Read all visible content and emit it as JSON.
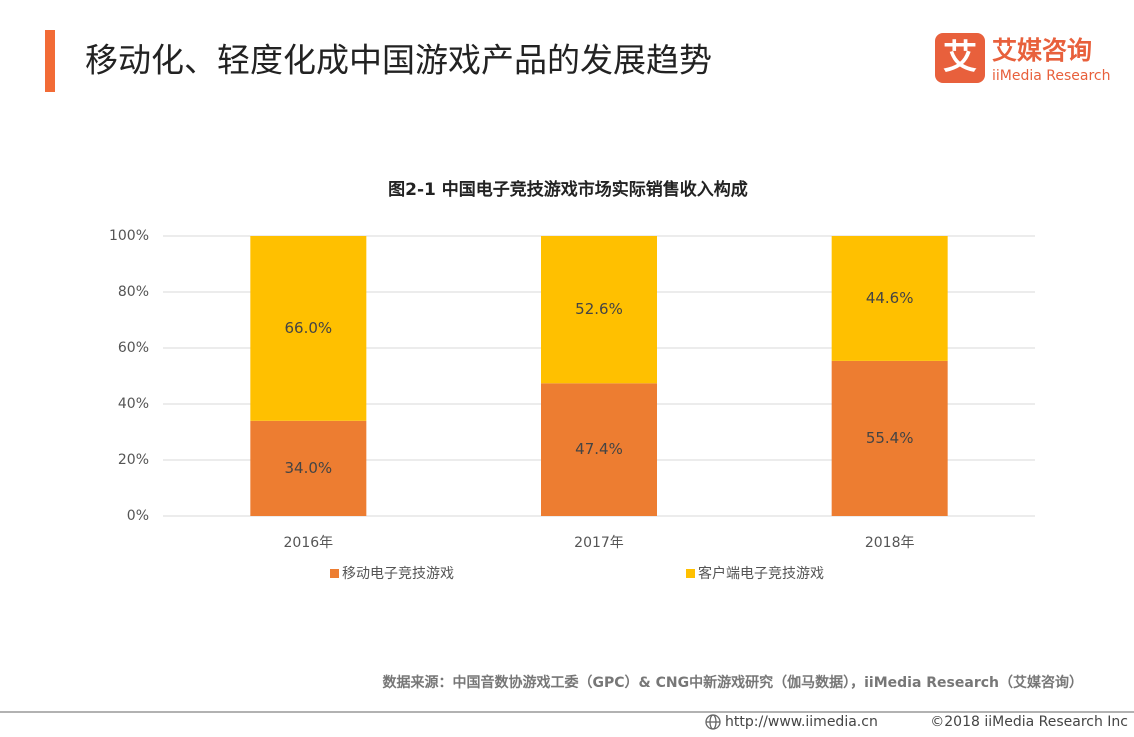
{
  "header": {
    "title": "移动化、轻度化成中国游戏产品的发展趋势"
  },
  "logo": {
    "icon": "艾",
    "name": "艾媒咨询",
    "subtitle": "iiMedia Research"
  },
  "chart_data": {
    "type": "bar",
    "stacked": true,
    "title": "图2-1 中国电子竞技游戏市场实际销售收入构成",
    "categories": [
      "2016年",
      "2017年",
      "2018年"
    ],
    "series": [
      {
        "name": "移动电子竞技游戏",
        "color": "#ed7d31",
        "values": [
          34.0,
          47.4,
          55.4
        ],
        "value_labels": [
          "34.0%",
          "47.4%",
          "55.4%"
        ]
      },
      {
        "name": "客户端电子竞技游戏",
        "color": "#ffc000",
        "values": [
          66.0,
          52.6,
          44.6
        ],
        "value_labels": [
          "66.0%",
          "52.6%",
          "44.6%"
        ]
      }
    ],
    "ylim": [
      0,
      100
    ],
    "yticks": [
      {
        "value": 0,
        "label": "0%"
      },
      {
        "value": 20,
        "label": "20%"
      },
      {
        "value": 40,
        "label": "40%"
      },
      {
        "value": 60,
        "label": "60%"
      },
      {
        "value": 80,
        "label": "80%"
      },
      {
        "value": 100,
        "label": "100%"
      }
    ],
    "grid": true,
    "legend": "bottom"
  },
  "source": "数据来源：中国音数协游戏工委（GPC）& CNG中新游戏研究（伽马数据），iiMedia Research（艾媒咨询）",
  "footer": {
    "url": "http://www.iimedia.cn",
    "copyright": "©2018 iiMedia Research Inc"
  }
}
